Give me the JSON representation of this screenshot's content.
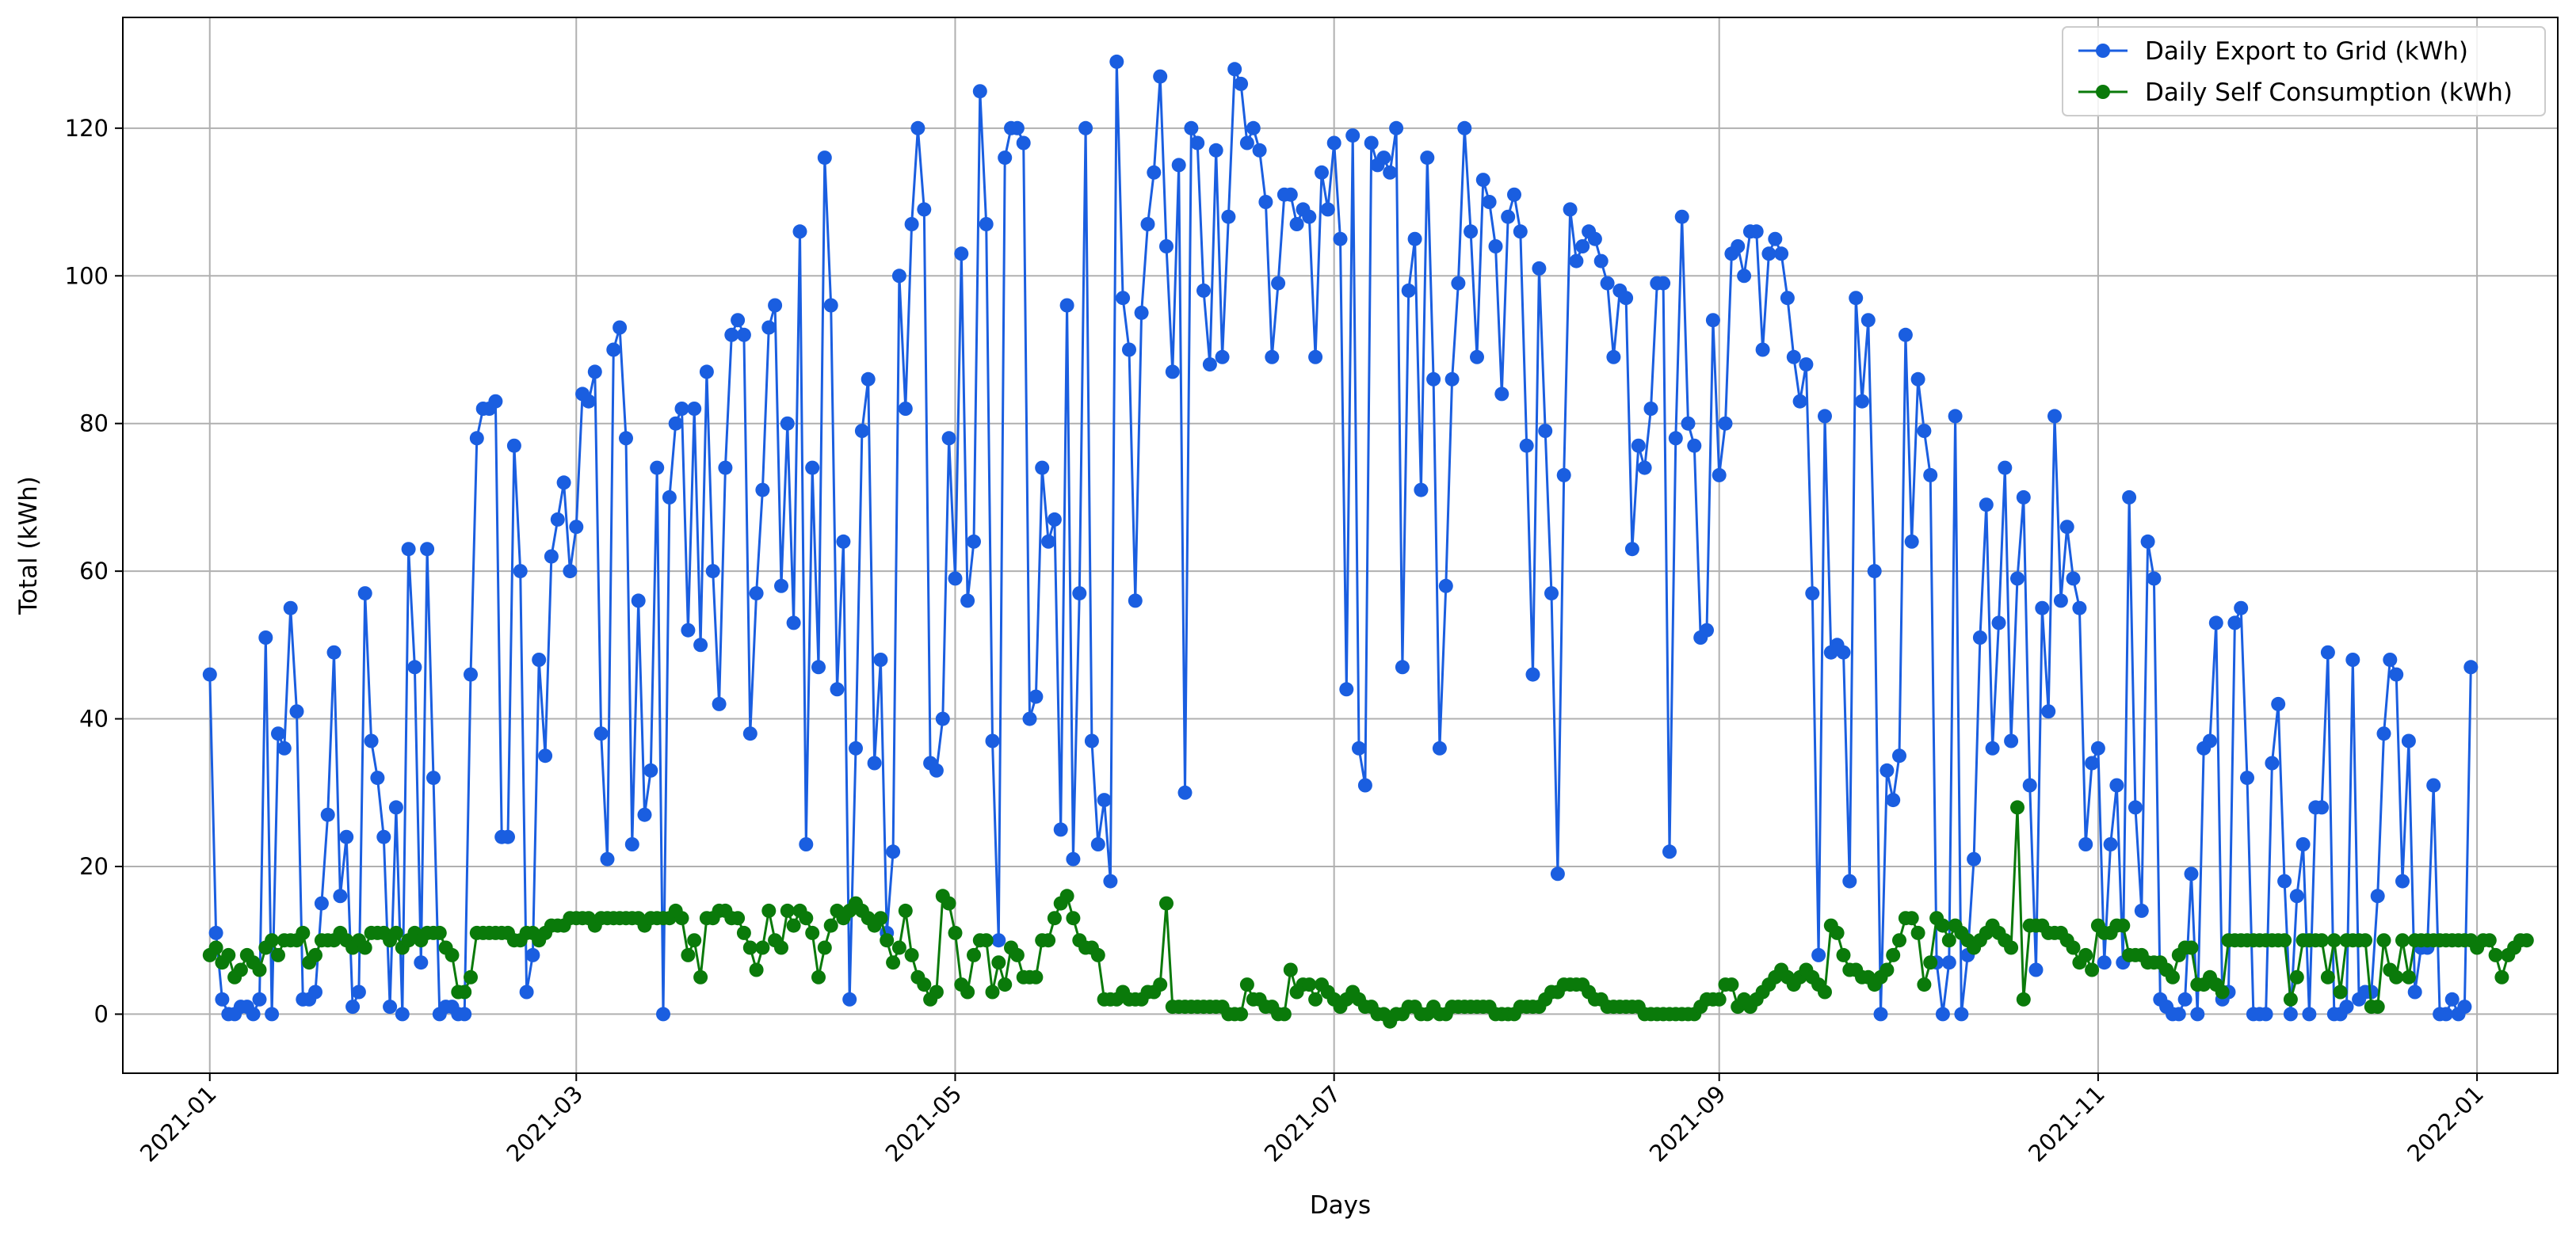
{
  "chart_data": {
    "type": "line",
    "title": "",
    "xlabel": "Days",
    "ylabel": "Total (kWh)",
    "x_range": [
      "2021-01-01",
      "2021-12-31"
    ],
    "xlim": [
      "2020-12-18",
      "2022-01-14"
    ],
    "ylim": [
      -8,
      135
    ],
    "grid": true,
    "legend_position": "top-right",
    "x_ticks": [
      {
        "date": "2021-01-01",
        "label": "2021-01"
      },
      {
        "date": "2021-03-01",
        "label": "2021-03"
      },
      {
        "date": "2021-05-01",
        "label": "2021-05"
      },
      {
        "date": "2021-07-01",
        "label": "2021-07"
      },
      {
        "date": "2021-09-01",
        "label": "2021-09"
      },
      {
        "date": "2021-11-01",
        "label": "2021-11"
      },
      {
        "date": "2022-01-01",
        "label": "2022-01"
      }
    ],
    "y_ticks": [
      0,
      20,
      40,
      60,
      80,
      100,
      120
    ],
    "series": [
      {
        "name": "Daily Export to Grid (kWh)",
        "color": "#1a5ee0",
        "marker": "circle",
        "values": [
          46,
          11,
          2,
          0,
          0,
          1,
          1,
          0,
          2,
          51,
          0,
          38,
          36,
          55,
          41,
          2,
          2,
          3,
          15,
          27,
          49,
          16,
          24,
          1,
          3,
          57,
          37,
          32,
          24,
          1,
          28,
          0,
          63,
          47,
          7,
          63,
          32,
          0,
          1,
          1,
          0,
          0,
          46,
          78,
          82,
          82,
          83,
          24,
          24,
          77,
          60,
          3,
          8,
          48,
          35,
          62,
          67,
          72,
          60,
          66,
          84,
          83,
          87,
          38,
          21,
          90,
          93,
          78,
          23,
          56,
          27,
          33,
          74,
          0,
          70,
          80,
          82,
          52,
          82,
          50,
          87,
          60,
          42,
          74,
          92,
          94,
          92,
          38,
          57,
          71,
          93,
          96,
          58,
          80,
          53,
          106,
          23,
          74,
          47,
          116,
          96,
          44,
          64,
          2,
          36,
          79,
          86,
          34,
          48,
          11,
          22,
          100,
          82,
          107,
          120,
          109,
          34,
          33,
          40,
          78,
          59,
          103,
          56,
          64,
          125,
          107,
          37,
          10,
          116,
          120,
          120,
          118,
          40,
          43,
          74,
          64,
          67,
          25,
          96,
          21,
          57,
          120,
          37,
          23,
          29,
          18,
          129,
          97,
          90,
          56,
          95,
          107,
          114,
          127,
          104,
          87,
          115,
          30,
          120,
          118,
          98,
          88,
          117,
          89,
          108,
          128,
          126,
          118,
          120,
          117,
          110,
          89,
          99,
          111,
          111,
          107,
          109,
          108,
          89,
          114,
          109,
          118,
          105,
          44,
          119,
          36,
          31,
          118,
          115,
          116,
          114,
          120,
          47,
          98,
          105,
          71,
          116,
          86,
          36,
          58,
          86,
          99,
          120,
          106,
          89,
          113,
          110,
          104,
          84,
          108,
          111,
          106,
          77,
          46,
          101,
          79,
          57,
          19,
          73,
          109,
          102,
          104,
          106,
          105,
          102,
          99,
          89,
          98,
          97,
          63,
          77,
          74,
          82,
          99,
          99,
          22,
          78,
          108,
          80,
          77,
          51,
          52,
          94,
          73,
          80,
          103,
          104,
          100,
          106,
          106,
          90,
          103,
          105,
          103,
          97,
          89,
          83,
          88,
          57,
          8,
          81,
          49,
          50,
          49,
          18,
          97,
          83,
          94,
          60,
          0,
          33,
          29,
          35,
          92,
          64,
          86,
          79,
          73,
          7,
          0,
          7,
          81,
          0,
          8,
          21,
          51,
          69,
          36,
          53,
          74,
          37,
          59,
          70,
          31,
          6,
          55,
          41,
          81,
          56,
          66,
          59,
          55,
          23,
          34,
          36,
          7,
          23,
          31,
          7,
          70,
          28,
          14,
          64,
          59,
          2,
          1,
          0,
          0,
          2,
          19,
          0,
          36,
          37,
          53,
          2,
          3,
          53,
          55,
          32,
          0,
          0,
          0,
          34,
          42,
          18,
          0,
          16,
          23,
          0,
          28,
          28,
          49,
          0,
          0,
          1,
          48,
          2,
          3,
          3,
          16,
          38,
          48,
          46,
          18,
          37,
          3,
          9,
          9,
          31,
          0,
          0,
          2,
          0,
          1,
          47
        ]
      },
      {
        "name": "Daily Self Consumption (kWh)",
        "color": "#0a7a0a",
        "marker": "circle",
        "values": [
          8,
          9,
          7,
          8,
          5,
          6,
          8,
          7,
          6,
          9,
          10,
          8,
          10,
          10,
          10,
          11,
          7,
          8,
          10,
          10,
          10,
          11,
          10,
          9,
          10,
          9,
          11,
          11,
          11,
          10,
          11,
          9,
          10,
          11,
          10,
          11,
          11,
          11,
          9,
          8,
          3,
          3,
          5,
          11,
          11,
          11,
          11,
          11,
          11,
          10,
          10,
          11,
          11,
          10,
          11,
          12,
          12,
          12,
          13,
          13,
          13,
          13,
          12,
          13,
          13,
          13,
          13,
          13,
          13,
          13,
          12,
          13,
          13,
          13,
          13,
          14,
          13,
          8,
          10,
          5,
          13,
          13,
          14,
          14,
          13,
          13,
          11,
          9,
          6,
          9,
          14,
          10,
          9,
          14,
          12,
          14,
          13,
          11,
          5,
          9,
          12,
          14,
          13,
          14,
          15,
          14,
          13,
          12,
          13,
          10,
          7,
          9,
          14,
          8,
          5,
          4,
          2,
          3,
          16,
          15,
          11,
          4,
          3,
          8,
          10,
          10,
          3,
          7,
          4,
          9,
          8,
          5,
          5,
          5,
          10,
          10,
          13,
          15,
          16,
          13,
          10,
          9,
          9,
          8,
          2,
          2,
          2,
          3,
          2,
          2,
          2,
          3,
          3,
          4,
          15,
          1,
          1,
          1,
          1,
          1,
          1,
          1,
          1,
          1,
          0,
          0,
          0,
          4,
          2,
          2,
          1,
          1,
          0,
          0,
          6,
          3,
          4,
          4,
          2,
          4,
          3,
          2,
          1,
          2,
          3,
          2,
          1,
          1,
          0,
          0,
          -1,
          0,
          0,
          1,
          1,
          0,
          0,
          1,
          0,
          0,
          1,
          1,
          1,
          1,
          1,
          1,
          1,
          0,
          0,
          0,
          0,
          1,
          1,
          1,
          1,
          2,
          3,
          3,
          4,
          4,
          4,
          4,
          3,
          2,
          2,
          1,
          1,
          1,
          1,
          1,
          1,
          0,
          0,
          0,
          0,
          0,
          0,
          0,
          0,
          0,
          1,
          2,
          2,
          2,
          4,
          4,
          1,
          2,
          1,
          2,
          3,
          4,
          5,
          6,
          5,
          4,
          5,
          6,
          5,
          4,
          3,
          12,
          11,
          8,
          6,
          6,
          5,
          5,
          4,
          5,
          6,
          8,
          10,
          13,
          13,
          11,
          4,
          7,
          13,
          12,
          10,
          12,
          11,
          10,
          9,
          10,
          11,
          12,
          11,
          10,
          9,
          28,
          2,
          12,
          12,
          12,
          11,
          11,
          11,
          10,
          9,
          7,
          8,
          6,
          12,
          11,
          11,
          12,
          12,
          8,
          8,
          8,
          7,
          7,
          7,
          6,
          5,
          8,
          9,
          9,
          4,
          4,
          5,
          4,
          3,
          10,
          10,
          10,
          10,
          10,
          10,
          10,
          10,
          10,
          10,
          2,
          5,
          10,
          10,
          10,
          10,
          5,
          10,
          3,
          10,
          10,
          10,
          10,
          1,
          1,
          10,
          6,
          5,
          10,
          5,
          10,
          10,
          10,
          10,
          10,
          10,
          10,
          10,
          10,
          10,
          9,
          10,
          10,
          8,
          5,
          8,
          9,
          10,
          10
        ]
      }
    ]
  }
}
